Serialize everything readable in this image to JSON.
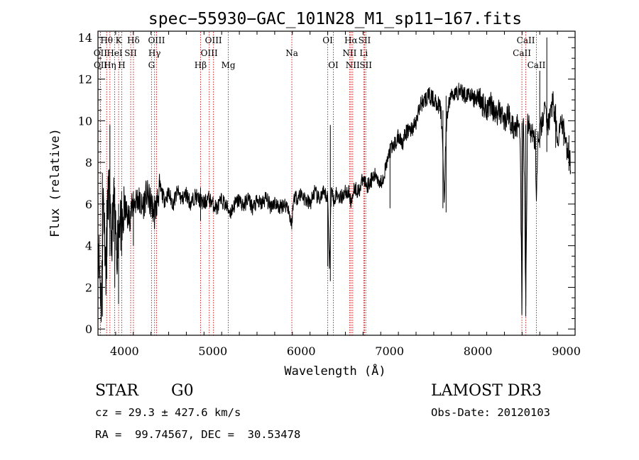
{
  "colors": {
    "axis": "#000000",
    "spectrum": "#000000",
    "line_markers": "#cc2222",
    "background": "#ffffff"
  },
  "chart_data": {
    "type": "line",
    "title": "spec−55930−GAC_101N28_M1_sp11−167.fits",
    "xlabel": "Wavelength (Å)",
    "ylabel": "Flux (relative)",
    "xlim": [
      3700,
      9100
    ],
    "ylim": [
      -0.3,
      14.3
    ],
    "xticks": [
      "4000",
      "5000",
      "6000",
      "7000",
      "8000",
      "9000"
    ],
    "yticks": [
      "0",
      "2",
      "4",
      "6",
      "8",
      "10",
      "12",
      "14"
    ],
    "series": [
      {
        "name": "spectrum",
        "x": [
          3700,
          3740,
          3760,
          3790,
          3820,
          3850,
          3880,
          3910,
          3940,
          3970,
          4000,
          4050,
          4100,
          4150,
          4200,
          4250,
          4300,
          4340,
          4400,
          4450,
          4500,
          4550,
          4600,
          4650,
          4700,
          4750,
          4800,
          4850,
          4900,
          4950,
          5000,
          5050,
          5100,
          5150,
          5200,
          5250,
          5300,
          5350,
          5400,
          5450,
          5500,
          5550,
          5600,
          5650,
          5700,
          5750,
          5800,
          5850,
          5890,
          5920,
          5950,
          6000,
          6050,
          6100,
          6150,
          6200,
          6250,
          6300,
          6320,
          6340,
          6360,
          6400,
          6450,
          6500,
          6550,
          6563,
          6580,
          6600,
          6650,
          6700,
          6750,
          6800,
          6850,
          6900,
          6950,
          7000,
          7050,
          7100,
          7150,
          7200,
          7250,
          7300,
          7350,
          7400,
          7450,
          7500,
          7550,
          7580,
          7600,
          7620,
          7640,
          7660,
          7680,
          7700,
          7750,
          7800,
          7850,
          7900,
          7950,
          8000,
          8050,
          8100,
          8150,
          8200,
          8250,
          8300,
          8350,
          8400,
          8450,
          8480,
          8498,
          8510,
          8520,
          8542,
          8560,
          8600,
          8650,
          8662,
          8680,
          8700,
          8750,
          8800,
          8850,
          8900,
          8950,
          9000,
          9050
        ],
        "values": [
          4.5,
          1.0,
          6.5,
          3.0,
          7.0,
          4.0,
          6.0,
          3.5,
          5.5,
          4.5,
          5.8,
          5.3,
          6.0,
          6.3,
          5.8,
          6.5,
          6.0,
          5.5,
          6.8,
          6.2,
          6.5,
          6.0,
          6.6,
          6.2,
          6.5,
          6.0,
          6.4,
          6.2,
          6.0,
          6.3,
          6.0,
          5.8,
          6.2,
          5.9,
          5.6,
          6.0,
          6.2,
          5.9,
          6.3,
          5.8,
          6.1,
          6.0,
          6.3,
          5.9,
          6.1,
          5.8,
          6.0,
          5.9,
          5.0,
          6.4,
          6.3,
          6.5,
          6.2,
          6.0,
          6.6,
          6.2,
          6.5,
          6.3,
          3.0,
          6.8,
          6.2,
          6.5,
          6.3,
          6.6,
          6.5,
          5.8,
          6.5,
          6.8,
          6.6,
          7.2,
          6.9,
          7.2,
          7.4,
          7.0,
          7.6,
          8.5,
          8.8,
          9.2,
          9.0,
          9.5,
          9.6,
          9.9,
          10.8,
          11.0,
          11.2,
          11.0,
          10.8,
          10.5,
          9.0,
          6.2,
          9.5,
          10.5,
          11.0,
          11.3,
          11.3,
          11.5,
          11.2,
          11.4,
          11.0,
          11.2,
          10.8,
          10.6,
          10.9,
          10.2,
          10.5,
          10.0,
          10.3,
          9.6,
          9.8,
          9.0,
          0.7,
          9.5,
          9.7,
          0.8,
          9.8,
          9.5,
          9.0,
          6.4,
          9.5,
          9.3,
          10.5,
          9.8,
          11.0,
          9.0,
          10.0,
          8.8,
          7.9
        ],
        "features": [
          {
            "x": 3750,
            "min": 0.6,
            "max": 7.5
          },
          {
            "x": 3800,
            "min": 2.4,
            "max": 6.2
          },
          {
            "x": 3835,
            "min": 3.5,
            "max": 9.8
          },
          {
            "x": 3890,
            "min": 2.0,
            "max": 6.8
          },
          {
            "x": 3933,
            "min": 1.2,
            "max": 6.0
          },
          {
            "x": 3968,
            "min": 3.5,
            "max": 6.6
          },
          {
            "x": 4101,
            "min": 4.0,
            "max": 6.6
          },
          {
            "x": 4340,
            "min": 4.8,
            "max": 6.4
          },
          {
            "x": 4861,
            "min": 5.2,
            "max": 6.8
          },
          {
            "x": 6300,
            "min": 3.0,
            "max": 6.4
          },
          {
            "x": 6330,
            "min": 2.3,
            "max": 9.8
          },
          {
            "x": 7005,
            "min": 5.8,
            "max": 8.9
          },
          {
            "x": 7604,
            "min": 5.8,
            "max": 10.5
          },
          {
            "x": 7640,
            "min": 5.6,
            "max": 11.2
          },
          {
            "x": 8498,
            "min": 0.7,
            "max": 9.9
          },
          {
            "x": 8542,
            "min": 0.6,
            "max": 9.8
          },
          {
            "x": 8700,
            "min": 8.7,
            "max": 12.4
          },
          {
            "x": 8780,
            "min": 8.5,
            "max": 14.0
          },
          {
            "x": 8880,
            "min": 8.7,
            "max": 10.8
          },
          {
            "x": 8970,
            "min": 8.8,
            "max": 10.0
          },
          {
            "x": 9030,
            "min": 7.6,
            "max": 9.3
          }
        ]
      }
    ],
    "line_ids": [
      {
        "label": "Hθ",
        "wavelength": 3798,
        "row": 0
      },
      {
        "label": "OII",
        "wavelength": 3727,
        "row": 1
      },
      {
        "label": "OII",
        "wavelength": 3729,
        "row": 2
      },
      {
        "label": "K",
        "wavelength": 3934,
        "row": 0
      },
      {
        "label": "HeI",
        "wavelength": 3889,
        "row": 1
      },
      {
        "label": "Hη",
        "wavelength": 3835,
        "row": 2
      },
      {
        "label": "Hδ",
        "wavelength": 4101,
        "row": 0
      },
      {
        "label": "SII",
        "wavelength": 4070,
        "row": 1
      },
      {
        "label": "H",
        "wavelength": 3969,
        "row": 2
      },
      {
        "label": "OIII",
        "wavelength": 4363,
        "row": 0
      },
      {
        "label": "Hγ",
        "wavelength": 4340,
        "row": 1
      },
      {
        "label": "G",
        "wavelength": 4306,
        "row": 2
      },
      {
        "label": "OIII",
        "wavelength": 5007,
        "row": 0
      },
      {
        "label": "OIII",
        "wavelength": 4959,
        "row": 1
      },
      {
        "label": "Hβ",
        "wavelength": 4861,
        "row": 2
      },
      {
        "label": "Mg",
        "wavelength": 5175,
        "row": 2
      },
      {
        "label": "Na",
        "wavelength": 5894,
        "row": 1
      },
      {
        "label": "OI",
        "wavelength": 6300,
        "row": 0
      },
      {
        "label": "OI",
        "wavelength": 6364,
        "row": 2
      },
      {
        "label": "Hα",
        "wavelength": 6563,
        "row": 0
      },
      {
        "label": "SII",
        "wavelength": 6717,
        "row": 0
      },
      {
        "label": "NII",
        "wavelength": 6548,
        "row": 1
      },
      {
        "label": "Li",
        "wavelength": 6708,
        "row": 1
      },
      {
        "label": "NII",
        "wavelength": 6583,
        "row": 2
      },
      {
        "label": "SII",
        "wavelength": 6731,
        "row": 2
      },
      {
        "label": "CaII",
        "wavelength": 8542,
        "row": 0
      },
      {
        "label": "CaII",
        "wavelength": 8498,
        "row": 1
      },
      {
        "label": "CaII",
        "wavelength": 8662,
        "row": 2
      }
    ]
  },
  "info": {
    "object_class": "STAR",
    "subclass": "G0",
    "survey": "LAMOST DR3",
    "redshift_line": "cz = 29.3 ± 427.6 km/s",
    "obs_date_line": "Obs-Date: 20120103",
    "coords_line": "RA =  99.74567, DEC =  30.53478"
  }
}
